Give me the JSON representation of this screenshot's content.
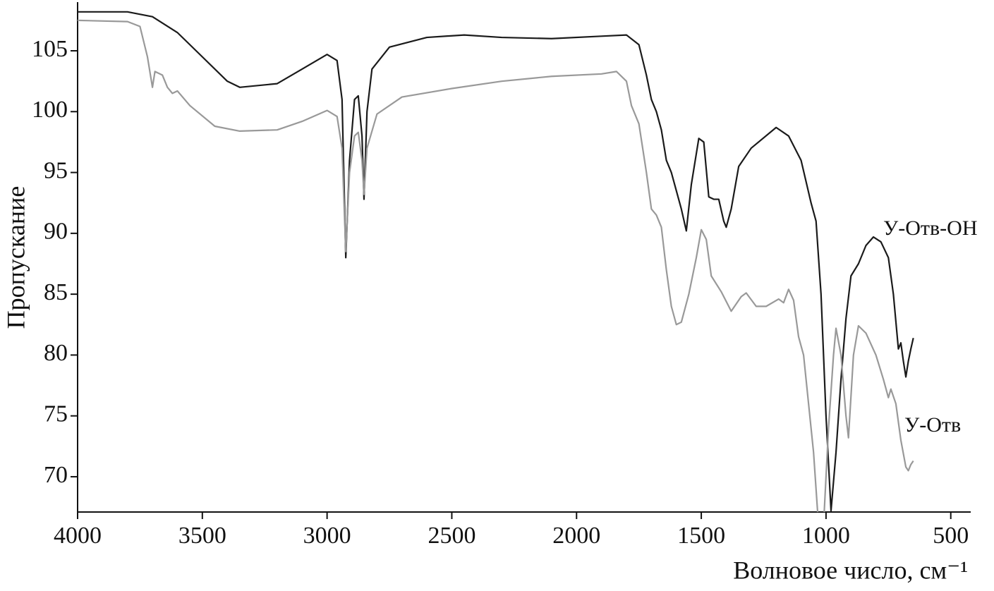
{
  "chart_data": {
    "type": "line",
    "xlabel": "Волновое число, см⁻¹",
    "ylabel": "Пропускание",
    "xlim": [
      4000,
      420
    ],
    "ylim": [
      67.1,
      109
    ],
    "xticks": [
      4000,
      3500,
      3000,
      2500,
      2000,
      1500,
      1000,
      500
    ],
    "yticks": [
      70,
      75,
      80,
      85,
      90,
      95,
      100,
      105
    ],
    "grid": false,
    "series": [
      {
        "name": "У-Отв-ОН",
        "color": "#1a1a1a",
        "x": [
          4000,
          3800,
          3700,
          3600,
          3500,
          3400,
          3350,
          3200,
          3100,
          3000,
          2960,
          2940,
          2925,
          2910,
          2890,
          2875,
          2860,
          2852,
          2840,
          2820,
          2750,
          2600,
          2450,
          2300,
          2100,
          1900,
          1800,
          1750,
          1720,
          1700,
          1680,
          1660,
          1640,
          1620,
          1600,
          1580,
          1560,
          1540,
          1510,
          1490,
          1470,
          1450,
          1430,
          1410,
          1400,
          1380,
          1350,
          1300,
          1200,
          1150,
          1100,
          1060,
          1040,
          1020,
          1000,
          980,
          960,
          940,
          920,
          900,
          870,
          840,
          810,
          780,
          750,
          730,
          710,
          700,
          690,
          680,
          670,
          660,
          650
        ],
        "values": [
          108.2,
          108.2,
          107.8,
          106.5,
          104.5,
          102.5,
          102.0,
          102.3,
          103.5,
          104.7,
          104.2,
          101,
          88,
          96,
          101,
          101.3,
          98,
          92.8,
          100,
          103.5,
          105.3,
          106.1,
          106.3,
          106.1,
          106.0,
          106.2,
          106.3,
          105.5,
          103,
          101,
          100,
          98.5,
          96,
          95,
          93.5,
          92,
          90.2,
          94,
          97.8,
          97.5,
          93,
          92.8,
          92.8,
          91,
          90.5,
          92,
          95.5,
          97,
          98.7,
          98,
          96,
          92.5,
          91,
          85,
          75,
          67.2,
          72,
          78,
          83,
          86.5,
          87.5,
          89,
          89.7,
          89.3,
          88,
          85,
          80.5,
          81,
          79.5,
          78.2,
          79.5,
          80.5,
          81.4
        ]
      },
      {
        "name": "У-Отв",
        "color": "#999999",
        "x": [
          4000,
          3800,
          3750,
          3720,
          3700,
          3690,
          3660,
          3640,
          3620,
          3600,
          3550,
          3450,
          3350,
          3200,
          3100,
          3000,
          2960,
          2940,
          2925,
          2910,
          2890,
          2875,
          2860,
          2852,
          2840,
          2800,
          2700,
          2500,
          2300,
          2100,
          1900,
          1840,
          1800,
          1780,
          1750,
          1720,
          1700,
          1680,
          1660,
          1640,
          1620,
          1600,
          1580,
          1550,
          1520,
          1500,
          1480,
          1460,
          1420,
          1380,
          1340,
          1320,
          1280,
          1240,
          1190,
          1170,
          1150,
          1130,
          1110,
          1090,
          1070,
          1050,
          1030,
          1010,
          990,
          970,
          960,
          940,
          920,
          910,
          890,
          870,
          840,
          800,
          770,
          750,
          740,
          720,
          700,
          680,
          670,
          660,
          650
        ],
        "values": [
          107.5,
          107.4,
          107,
          104.5,
          102,
          103.3,
          103,
          102,
          101.5,
          101.7,
          100.5,
          98.8,
          98.4,
          98.5,
          99.2,
          100.1,
          99.6,
          97,
          88.5,
          95,
          98,
          98.3,
          96,
          93.2,
          97,
          99.8,
          101.2,
          101.9,
          102.5,
          102.9,
          103.1,
          103.3,
          102.5,
          100.5,
          99,
          95,
          92,
          91.5,
          90.5,
          87,
          84,
          82.5,
          82.7,
          85,
          88,
          90.3,
          89.5,
          86.5,
          85.2,
          83.6,
          84.8,
          85.1,
          84,
          84,
          84.6,
          84.3,
          85.4,
          84.5,
          81.5,
          80,
          76,
          72,
          66,
          66,
          74,
          80,
          82.2,
          80,
          75,
          73.2,
          80,
          82.4,
          81.8,
          80,
          78,
          76.5,
          77.2,
          76,
          73,
          70.8,
          70.5,
          71,
          71.3
        ]
      }
    ]
  }
}
